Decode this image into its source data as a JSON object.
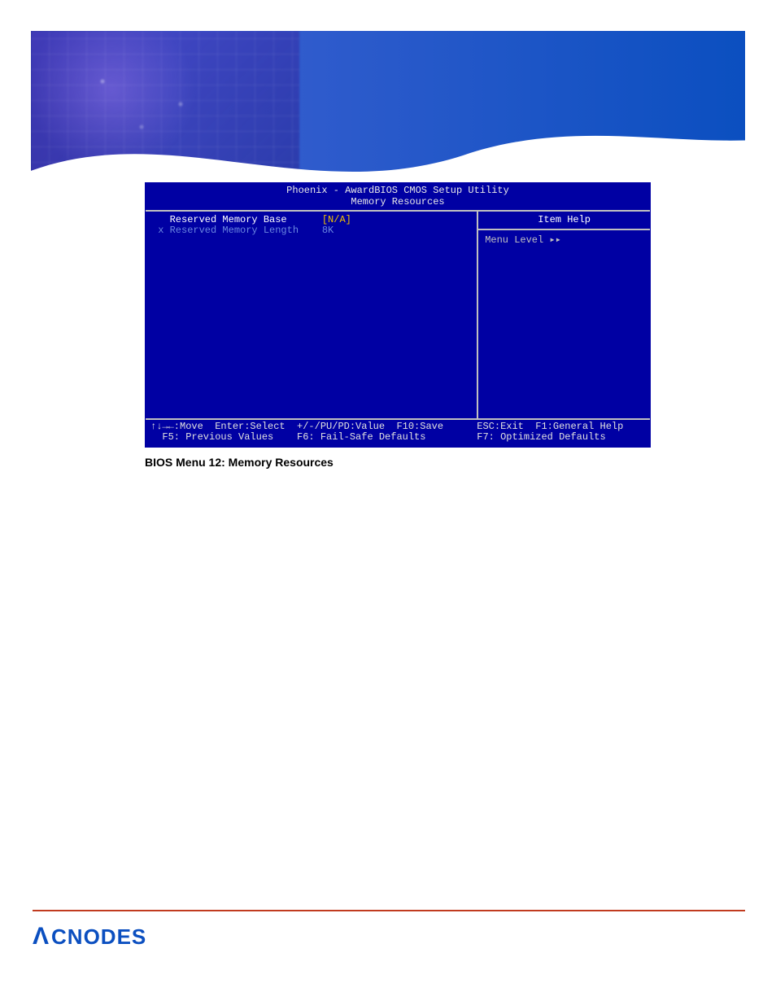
{
  "header": {
    "banner_gradient_from": "#2a3a9e",
    "banner_gradient_to": "#0b4fc0",
    "wave_color": "#ffffff"
  },
  "bios": {
    "title_line1": "Phoenix - AwardBIOS CMOS Setup Utility",
    "title_line2": "Memory Resources",
    "bg_color": "#0000a3",
    "border_color": "#c0c0c0",
    "items": [
      {
        "label": "   Reserved Memory Base",
        "value": "[N/A]",
        "value_color": "#f0c000",
        "label_color": "#ffffff"
      },
      {
        "label": " x Reserved Memory Length",
        "value": "8K",
        "value_color": "#6a86e0",
        "label_color": "#6a86e0"
      }
    ],
    "label_col_width": 29,
    "help_header": "Item Help",
    "help_body": "Menu Level   ▸▸",
    "footer": {
      "row1_left": "↑↓→←:Move  Enter:Select  +/-/PU/PD:Value  F10:Save",
      "row1_right": "ESC:Exit  F1:General Help",
      "row2_left": "  F5: Previous Values    F6: Fail-Safe Defaults",
      "row2_right": "F7: Optimized Defaults"
    }
  },
  "caption": "BIOS Menu 12: Memory Resources",
  "brand": {
    "name": "CNODES",
    "lambda": "Λ",
    "color": "#0b4fc0"
  },
  "footer_rule_color": "#c13b1f"
}
